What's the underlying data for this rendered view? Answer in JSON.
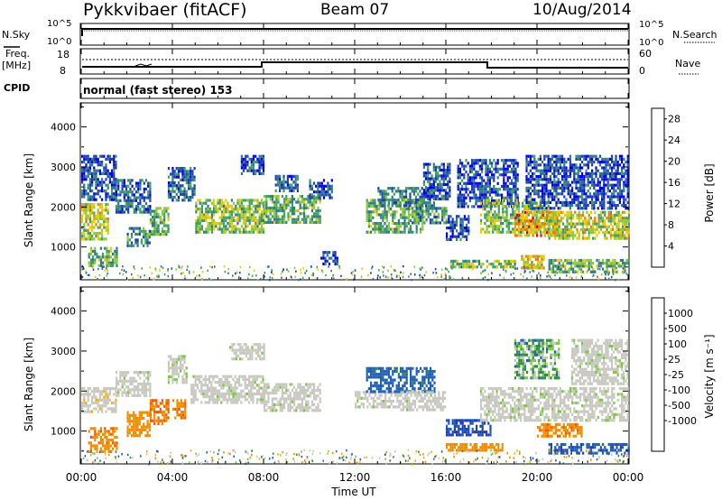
{
  "header": {
    "station": "Pykkvibaer (fitACF)",
    "beam": "Beam 07",
    "date": "10/Aug/2014"
  },
  "top_panels": {
    "nsky_label": "N.Sky",
    "nsky_ticks": [
      "10^5",
      "10^0"
    ],
    "nsearch_label": "N.Search",
    "nsearch_ticks": [
      "10^5",
      "10^0"
    ],
    "freq_label": "Freq.",
    "freq_unit": "[MHz]",
    "freq_ticks": [
      "18",
      "8"
    ],
    "nave_label": "Nave",
    "nave_ticks": [
      "60",
      "0"
    ],
    "cpid_label": "CPID",
    "cpid_text": "normal (fast stereo) 153"
  },
  "chart_data": [
    {
      "type": "heatmap",
      "name": "power",
      "ylabel": "Slant Range [km]",
      "y_ticks": [
        "4000",
        "3000",
        "2000",
        "1000"
      ],
      "y_tick_values": [
        4000,
        3000,
        2000,
        1000
      ],
      "ylim": [
        180,
        4600
      ],
      "xlim_hours": [
        0,
        24
      ],
      "colorbar_label": "Power [dB]",
      "colorbar_ticks": [
        "28",
        "24",
        "20",
        "16",
        "12",
        "8",
        "4"
      ],
      "colorbar_values": [
        28,
        24,
        20,
        16,
        12,
        8,
        4
      ],
      "clim": [
        0,
        30
      ],
      "colors": [
        "#0000e6",
        "#1e3fb4",
        "#2d7a8a",
        "#3fa060",
        "#8cc83c",
        "#f0c800",
        "#f07800",
        "#e60000"
      ],
      "regions": [
        {
          "t0": 0.0,
          "t1": 1.2,
          "r0": 1200,
          "r1": 2100,
          "level": 18
        },
        {
          "t0": 0.3,
          "t1": 1.6,
          "r0": 500,
          "r1": 1000,
          "level": 14
        },
        {
          "t0": 0.0,
          "t1": 1.5,
          "r0": 2200,
          "r1": 3300,
          "level": 6
        },
        {
          "t0": 1.5,
          "t1": 3.0,
          "r0": 1900,
          "r1": 2700,
          "level": 8
        },
        {
          "t0": 3.0,
          "t1": 3.8,
          "r0": 1300,
          "r1": 2000,
          "level": 14
        },
        {
          "t0": 2.0,
          "t1": 3.0,
          "r0": 1000,
          "r1": 1500,
          "level": 10
        },
        {
          "t0": 3.8,
          "t1": 5.0,
          "r0": 2200,
          "r1": 3000,
          "level": 8
        },
        {
          "t0": 5.0,
          "t1": 8.0,
          "r0": 1400,
          "r1": 2200,
          "level": 16
        },
        {
          "t0": 7.0,
          "t1": 8.0,
          "r0": 2800,
          "r1": 3300,
          "level": 6
        },
        {
          "t0": 8.0,
          "t1": 10.5,
          "r0": 1600,
          "r1": 2300,
          "level": 14
        },
        {
          "t0": 8.5,
          "t1": 9.5,
          "r0": 2400,
          "r1": 2800,
          "level": 8
        },
        {
          "t0": 10.0,
          "t1": 11.0,
          "r0": 2200,
          "r1": 2700,
          "level": 6
        },
        {
          "t0": 10.5,
          "t1": 11.2,
          "r0": 600,
          "r1": 900,
          "level": 6
        },
        {
          "t0": 12.5,
          "t1": 15.0,
          "r0": 1400,
          "r1": 2200,
          "level": 14
        },
        {
          "t0": 13.0,
          "t1": 15.5,
          "r0": 2000,
          "r1": 2500,
          "level": 10
        },
        {
          "t0": 14.5,
          "t1": 16.0,
          "r0": 1600,
          "r1": 2000,
          "level": 12
        },
        {
          "t0": 15.0,
          "t1": 16.2,
          "r0": 2200,
          "r1": 3100,
          "level": 7
        },
        {
          "t0": 16.0,
          "t1": 17.0,
          "r0": 1200,
          "r1": 1800,
          "level": 6
        },
        {
          "t0": 16.2,
          "t1": 19.0,
          "r0": 480,
          "r1": 680,
          "level": 16
        },
        {
          "t0": 16.5,
          "t1": 19.2,
          "r0": 2000,
          "r1": 3200,
          "level": 6
        },
        {
          "t0": 17.5,
          "t1": 20.5,
          "r0": 1400,
          "r1": 2200,
          "level": 16
        },
        {
          "t0": 19.0,
          "t1": 21.0,
          "r0": 1300,
          "r1": 1900,
          "level": 22
        },
        {
          "t0": 19.3,
          "t1": 20.3,
          "r0": 500,
          "r1": 800,
          "level": 20
        },
        {
          "t0": 20.5,
          "t1": 24.0,
          "r0": 1200,
          "r1": 1900,
          "level": 18
        },
        {
          "t0": 20.5,
          "t1": 24.0,
          "r0": 400,
          "r1": 700,
          "level": 14
        },
        {
          "t0": 19.5,
          "t1": 24.0,
          "r0": 2000,
          "r1": 3300,
          "level": 6
        }
      ]
    },
    {
      "type": "heatmap",
      "name": "velocity",
      "ylabel": "Slant Range [km]",
      "y_ticks": [
        "4000",
        "3000",
        "2000",
        "1000"
      ],
      "y_tick_values": [
        4000,
        3000,
        2000,
        1000
      ],
      "ylim": [
        180,
        4600
      ],
      "xlim_hours": [
        0,
        24
      ],
      "colorbar_label": "Velocity [m s⁻¹]",
      "colorbar_ticks": [
        "1000",
        "500",
        "100",
        "25",
        "-25",
        "-100",
        "-500",
        "-1000"
      ],
      "colors": [
        "#e60000",
        "#f05a00",
        "#f08c00",
        "#f0b400",
        "#c8c8c0",
        "#c8c8c0",
        "#7ac83c",
        "#2d8a4a",
        "#1e5fb4",
        "#1e3fb4"
      ],
      "regions": [
        {
          "t0": 0.0,
          "t1": 1.5,
          "r0": 1500,
          "r1": 2100,
          "level": -30
        },
        {
          "t0": 0.3,
          "t1": 1.6,
          "r0": 500,
          "r1": 1100,
          "level": -400
        },
        {
          "t0": 1.5,
          "t1": 3.0,
          "r0": 1900,
          "r1": 2500,
          "level": 0
        },
        {
          "t0": 3.0,
          "t1": 3.8,
          "r0": 1200,
          "r1": 1800,
          "level": -500
        },
        {
          "t0": 2.0,
          "t1": 3.0,
          "r0": 900,
          "r1": 1500,
          "level": -300
        },
        {
          "t0": 3.8,
          "t1": 4.6,
          "r0": 2200,
          "r1": 2900,
          "level": 0
        },
        {
          "t0": 4.0,
          "t1": 4.6,
          "r0": 1300,
          "r1": 1800,
          "level": -500
        },
        {
          "t0": 4.8,
          "t1": 8.0,
          "r0": 1700,
          "r1": 2400,
          "level": 0
        },
        {
          "t0": 6.5,
          "t1": 8.0,
          "r0": 2800,
          "r1": 3200,
          "level": 0
        },
        {
          "t0": 8.0,
          "t1": 10.5,
          "r0": 1500,
          "r1": 2200,
          "level": 0
        },
        {
          "t0": 12.0,
          "t1": 14.0,
          "r0": 1600,
          "r1": 2000,
          "level": 0
        },
        {
          "t0": 12.5,
          "t1": 15.5,
          "r0": 2000,
          "r1": 2600,
          "level": 200
        },
        {
          "t0": 14.0,
          "t1": 16.0,
          "r0": 1500,
          "r1": 2000,
          "level": 0
        },
        {
          "t0": 16.0,
          "t1": 18.5,
          "r0": 500,
          "r1": 700,
          "level": -300
        },
        {
          "t0": 16.0,
          "t1": 18.0,
          "r0": 900,
          "r1": 1300,
          "level": 600
        },
        {
          "t0": 17.5,
          "t1": 24.0,
          "r0": 1300,
          "r1": 2100,
          "level": 0
        },
        {
          "t0": 19.0,
          "t1": 21.0,
          "r0": 2300,
          "r1": 3300,
          "level": 60
        },
        {
          "t0": 20.5,
          "t1": 24.0,
          "r0": 450,
          "r1": 700,
          "level": 400
        },
        {
          "t0": 20.0,
          "t1": 22.0,
          "r0": 900,
          "r1": 1200,
          "level": -400
        },
        {
          "t0": 21.5,
          "t1": 24.0,
          "r0": 2200,
          "r1": 3300,
          "level": 0
        }
      ]
    }
  ],
  "x_axis": {
    "ticks": [
      "00:00",
      "04:00",
      "08:00",
      "12:00",
      "16:00",
      "20:00",
      "00:00"
    ],
    "tick_hours": [
      0,
      4,
      8,
      12,
      16,
      20,
      24
    ],
    "label": "Time UT"
  }
}
